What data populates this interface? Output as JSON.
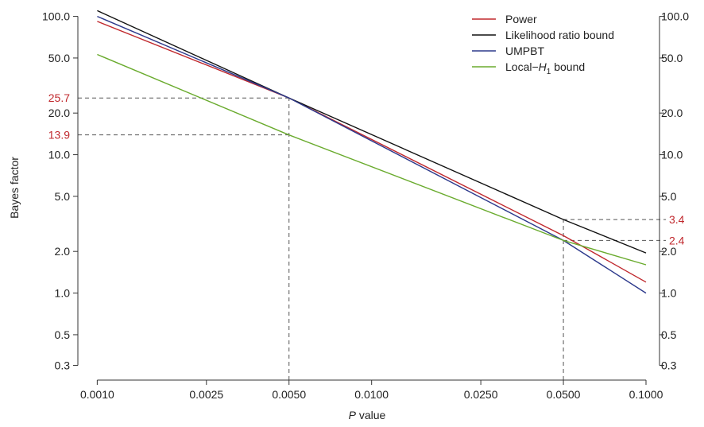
{
  "chart_data": {
    "type": "line",
    "xlabel_italic": "P",
    "xlabel_rest": " value",
    "ylabel": "Bayes factor",
    "x_scale": "log",
    "y_scale": "log",
    "xlim": [
      0.00085,
      0.112
    ],
    "ylim": [
      0.235,
      115
    ],
    "x_ticks": [
      0.001,
      0.0025,
      0.005,
      0.01,
      0.025,
      0.05,
      0.1
    ],
    "x_tick_labels": [
      "0.0010",
      "0.0025",
      "0.0050",
      "0.0100",
      "0.0250",
      "0.0500",
      "0.1000"
    ],
    "y_ticks": [
      0.3,
      0.5,
      1.0,
      2.0,
      5.0,
      10.0,
      20.0,
      50.0,
      100.0
    ],
    "y_tick_labels": [
      "0.3",
      "0.5",
      "1.0",
      "2.0",
      "5.0",
      "10.0",
      "20.0",
      "50.0",
      "100.0"
    ],
    "reference_values": {
      "vertical_x": [
        0.005,
        0.05
      ],
      "left_y": [
        25.7,
        13.9
      ],
      "left_y_labels": [
        "25.7",
        "13.9"
      ],
      "right_y": [
        3.4,
        2.4
      ],
      "right_y_labels": [
        "3.4",
        "2.4"
      ],
      "color": "#c0282d"
    },
    "legend_position": "top-right",
    "series": [
      {
        "name": "Power",
        "color": "#c0282d",
        "x": [
          0.001,
          0.005,
          0.05,
          0.1
        ],
        "y": [
          92,
          25.7,
          2.6,
          1.2
        ]
      },
      {
        "name": "Likelihood ratio bound",
        "color": "#111111",
        "x": [
          0.001,
          0.005,
          0.05,
          0.1
        ],
        "y": [
          110,
          25.7,
          3.4,
          1.95
        ]
      },
      {
        "name": "UMPBT",
        "color": "#2d3a8c",
        "x": [
          0.001,
          0.005,
          0.05,
          0.1
        ],
        "y": [
          100,
          25.7,
          2.4,
          1.0
        ]
      },
      {
        "name": "Local−",
        "name_italic": "H",
        "name_sub": "1",
        "name_tail": " bound",
        "color": "#6aab2e",
        "x": [
          0.001,
          0.005,
          0.05,
          0.1
        ],
        "y": [
          53,
          13.9,
          2.4,
          1.6
        ]
      }
    ]
  }
}
